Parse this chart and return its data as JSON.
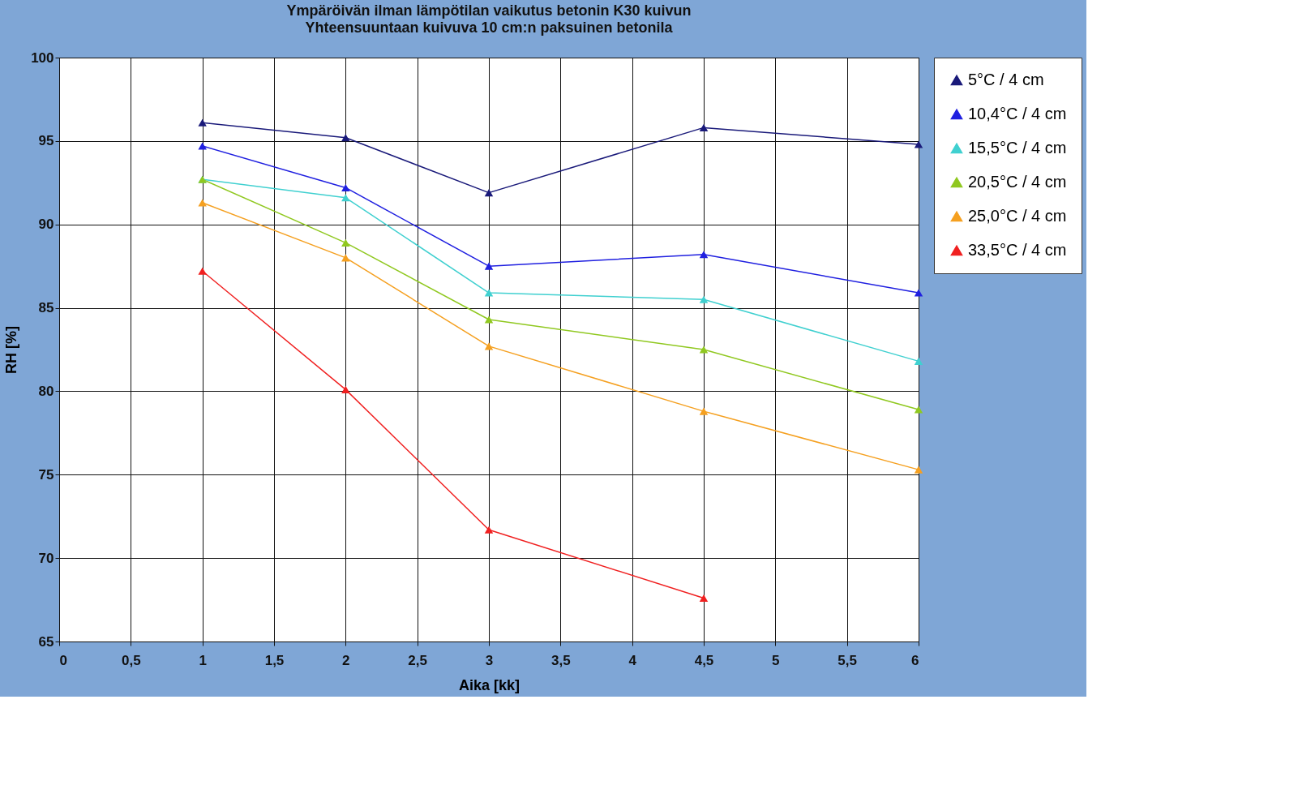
{
  "chart_data": {
    "type": "line",
    "title": "Ympäröivän ilman lämpötilan vaikutus betonin K30 kuivun",
    "subtitle": "Yhteensuuntaan kuivuva 10 cm:n paksuinen betonila",
    "xlabel": "Aika [kk]",
    "ylabel": "RH [%]",
    "x": [
      1,
      2,
      3,
      4.5,
      6
    ],
    "series": [
      {
        "name": "5°C / 4 cm",
        "color": "#1a1a7a",
        "values": [
          96.1,
          95.2,
          91.9,
          95.8,
          94.8
        ]
      },
      {
        "name": "10,4°C / 4 cm",
        "color": "#2020e0",
        "values": [
          94.7,
          92.2,
          87.5,
          88.2,
          85.9
        ]
      },
      {
        "name": "15,5°C / 4 cm",
        "color": "#40d0d0",
        "values": [
          92.7,
          91.6,
          85.9,
          85.5,
          81.8
        ]
      },
      {
        "name": "20,5°C / 4 cm",
        "color": "#90c820",
        "values": [
          92.7,
          88.9,
          84.3,
          82.5,
          78.9
        ]
      },
      {
        "name": "25,0°C / 4 cm",
        "color": "#f5a020",
        "values": [
          91.3,
          88.0,
          82.7,
          78.8,
          75.3
        ]
      },
      {
        "name": "33,5°C / 4 cm",
        "color": "#f02020",
        "values": [
          87.2,
          80.1,
          71.7,
          67.6,
          null
        ]
      }
    ],
    "xlim": [
      0,
      6
    ],
    "xticks": [
      0,
      {
        "value": 0.5,
        "label": "0,5"
      },
      1,
      {
        "value": 1.5,
        "label": "1,5"
      },
      2,
      {
        "value": 2.5,
        "label": "2,5"
      },
      3,
      {
        "value": 3.5,
        "label": "3,5"
      },
      4,
      {
        "value": 4.5,
        "label": "4,5"
      },
      5,
      {
        "value": 5.5,
        "label": "5,5"
      },
      6
    ],
    "ylim": [
      65,
      100
    ],
    "yticks": [
      65,
      70,
      75,
      80,
      85,
      90,
      95,
      100
    ],
    "grid": true,
    "legend": "top right",
    "marker": "triangle",
    "line_style": "solid"
  }
}
